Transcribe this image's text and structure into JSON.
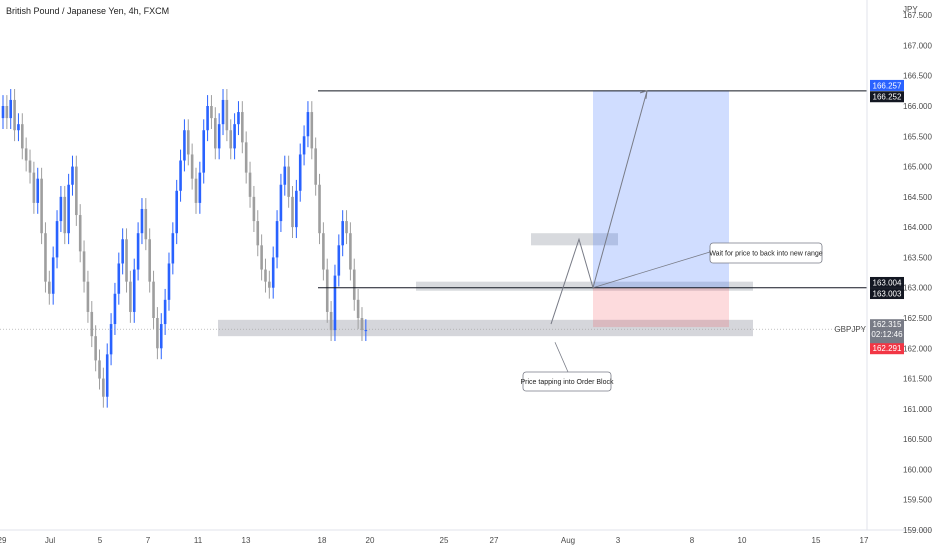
{
  "chart_data": {
    "type": "candlestick",
    "title": "British Pound / Japanese Yen, 4h, FXCM",
    "currency_label": "JPY",
    "ylim": [
      159.0,
      167.75
    ],
    "yticks": [
      "159.000",
      "159.500",
      "160.000",
      "160.500",
      "161.000",
      "161.500",
      "162.000",
      "162.500",
      "163.000",
      "163.500",
      "164.000",
      "164.500",
      "165.000",
      "165.500",
      "166.000",
      "166.500",
      "167.000",
      "167.500"
    ],
    "xticks": [
      "29",
      "Jul",
      "5",
      "7",
      "11",
      "13",
      "18",
      "20",
      "25",
      "27",
      "Aug",
      "3",
      "8",
      "10",
      "15",
      "17"
    ],
    "candle_count": 95,
    "closes": [
      166.0,
      165.8,
      166.1,
      165.6,
      165.7,
      165.3,
      165.1,
      164.9,
      164.4,
      164.8,
      163.9,
      163.1,
      162.9,
      163.5,
      164.1,
      164.5,
      163.9,
      164.7,
      165.0,
      164.2,
      163.6,
      163.1,
      162.6,
      162.2,
      161.8,
      161.5,
      161.2,
      161.9,
      162.4,
      162.9,
      163.4,
      163.8,
      163.1,
      162.6,
      163.3,
      163.9,
      164.3,
      163.8,
      163.1,
      162.5,
      162.0,
      162.4,
      162.8,
      163.4,
      163.9,
      164.6,
      165.1,
      165.6,
      165.2,
      164.8,
      164.4,
      164.9,
      165.6,
      166.0,
      165.8,
      165.3,
      165.7,
      166.1,
      165.6,
      165.3,
      165.7,
      165.9,
      165.4,
      164.9,
      164.5,
      164.1,
      163.7,
      163.3,
      163.1,
      163.0,
      163.5,
      164.1,
      164.7,
      165.0,
      164.5,
      164.0,
      164.6,
      165.2,
      165.5,
      165.9,
      165.3,
      164.7,
      163.9,
      163.3,
      162.6,
      162.3,
      163.2,
      163.7,
      164.1,
      163.9,
      163.3,
      162.8,
      162.5,
      162.3,
      162.3
    ],
    "order_block_zone": [
      162.2,
      162.47
    ],
    "range_low_zone": [
      162.95,
      163.1
    ],
    "upper_resistance": 166.25,
    "range_line": 163.0,
    "retest_box": [
      163.7,
      163.9
    ],
    "target_zone": [
      163.004,
      166.257
    ],
    "stop_zone": [
      162.35,
      163.004
    ],
    "annotations": {
      "order_block_note": "Price tapping into Order Block",
      "range_note": "Wait for price to back into new range"
    },
    "price_badges": {
      "target": "166.257",
      "resistance": "166.252",
      "entry_upper": "163.004",
      "entry_lower": "163.003",
      "symbol": "GBPJPY",
      "last_price": "162.315",
      "countdown": "02:12:46",
      "low_price": "162.291"
    },
    "colors": {
      "up": "#2962ff",
      "down": "#9e9e9e",
      "target_fill": "#2962ff",
      "stop_fill": "#f23645",
      "zone_fill": "#b2b5be",
      "badge_dark": "#131722",
      "badge_blue": "#2962ff",
      "badge_red": "#f23645",
      "badge_gray": "#787b86"
    }
  }
}
